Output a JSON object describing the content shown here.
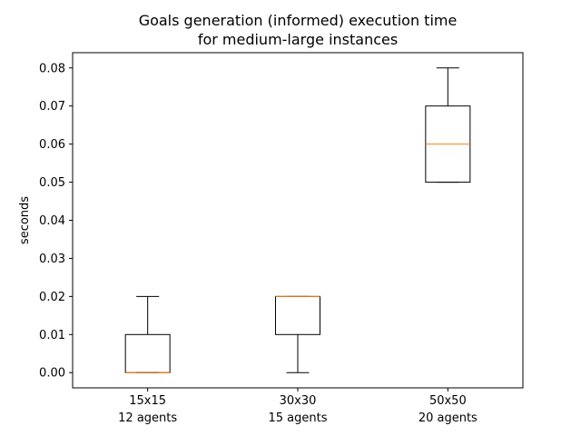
{
  "chart_data": {
    "type": "box",
    "title_lines": [
      "Goals generation (informed) execution time",
      "for medium-large instances"
    ],
    "xlabel": "",
    "ylabel": "seconds",
    "ylim": [
      -0.004,
      0.084
    ],
    "yticks": [
      "0.00",
      "0.01",
      "0.02",
      "0.03",
      "0.04",
      "0.05",
      "0.06",
      "0.07",
      "0.08"
    ],
    "ytick_values": [
      0,
      0.01,
      0.02,
      0.03,
      0.04,
      0.05,
      0.06,
      0.07,
      0.08
    ],
    "categories": [
      {
        "line1": "15x15",
        "line2": "12 agents"
      },
      {
        "line1": "30x30",
        "line2": "15 agents"
      },
      {
        "line1": "50x50",
        "line2": "20 agents"
      }
    ],
    "boxes": [
      {
        "whisker_low": 0.0,
        "q1": 0.0,
        "median": 0.0,
        "q3": 0.01,
        "whisker_high": 0.02
      },
      {
        "whisker_low": 0.0,
        "q1": 0.01,
        "median": 0.02,
        "q3": 0.02,
        "whisker_high": 0.02
      },
      {
        "whisker_low": 0.05,
        "q1": 0.05,
        "median": 0.06,
        "q3": 0.07,
        "whisker_high": 0.08
      }
    ],
    "colors": {
      "box": "#000000",
      "median": "#ff7f0e"
    }
  }
}
